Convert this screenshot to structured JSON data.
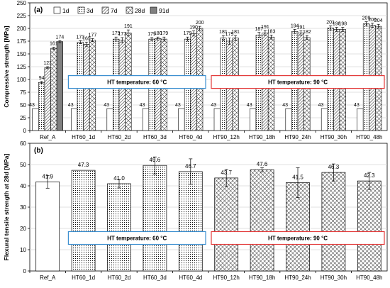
{
  "chart_data": [
    {
      "type": "bar",
      "panel_label": "(a)",
      "ylabel": "Compressive strength [MPa]",
      "ylim": [
        0,
        250
      ],
      "yticks": [
        0,
        25,
        50,
        75,
        100,
        125,
        150,
        175,
        200,
        225,
        250
      ],
      "grid": true,
      "legend_position": "top",
      "categories": [
        "Ref_A",
        "HT60_1d",
        "HT60_2d",
        "HT60_3d",
        "HT60_4d",
        "HT90_12h",
        "HT90_18h",
        "HT90_24h",
        "HT90_30h",
        "HT90_48h"
      ],
      "series": [
        {
          "name": "1d",
          "values": [
            43,
            43,
            43,
            43,
            43,
            43,
            43,
            43,
            43,
            43
          ]
        },
        {
          "name": "3d",
          "values": [
            94,
            173,
            179,
            179,
            179,
            181,
            187,
            194,
            201,
            209
          ]
        },
        {
          "name": "7d",
          "values": [
            123,
            169,
            177,
            180,
            190,
            175,
            191,
            191,
            198,
            206
          ]
        },
        {
          "name": "28d",
          "values": [
            161,
            177,
            191,
            179,
            200,
            181,
            183,
            182,
            198,
            204
          ]
        },
        {
          "name": "91d",
          "values": [
            174,
            null,
            null,
            null,
            null,
            null,
            null,
            null,
            null,
            null
          ]
        }
      ],
      "labels": [
        [
          "43",
          "94",
          "123",
          "161",
          "174"
        ],
        [
          "43",
          "173",
          "169",
          "177"
        ],
        [
          "43",
          "179",
          "177",
          "191"
        ],
        [
          "43",
          "179",
          "180",
          "179"
        ],
        [
          "43",
          "179",
          "190",
          "200"
        ],
        [
          "43",
          "181",
          "175",
          "181"
        ],
        [
          "43",
          "187",
          "191",
          "183"
        ],
        [
          "43",
          "194",
          "191",
          "182"
        ],
        [
          "43",
          "201",
          "198",
          "198"
        ],
        [
          "43",
          "209",
          "206",
          "204"
        ]
      ],
      "errors": [
        [
          0,
          2,
          2,
          2,
          2
        ],
        [
          0,
          3,
          4,
          3
        ],
        [
          0,
          4,
          5,
          6
        ],
        [
          0,
          3,
          3,
          4
        ],
        [
          0,
          4,
          5,
          4
        ],
        [
          0,
          5,
          6,
          5
        ],
        [
          0,
          5,
          5,
          4
        ],
        [
          0,
          4,
          4,
          4
        ],
        [
          0,
          4,
          4,
          4
        ],
        [
          0,
          4,
          4,
          4
        ]
      ],
      "annotations": [
        {
          "text": "HT temperature: 60 °C",
          "from": 1,
          "to": 4,
          "y": 95,
          "box_color": "#3c8fd0"
        },
        {
          "text": "HT temperature: 90 °C",
          "from": 5,
          "to": 9,
          "y": 95,
          "box_color": "#e33b3b"
        }
      ]
    },
    {
      "type": "bar",
      "panel_label": "(b)",
      "ylabel": "Flexural tensile strength at 28d [MPa]",
      "ylim": [
        0,
        60
      ],
      "yticks": [
        0,
        10,
        20,
        30,
        40,
        50,
        60
      ],
      "grid": true,
      "categories": [
        "Ref_A",
        "HT60_1d",
        "HT60_2d",
        "HT60_3d",
        "HT60_4d",
        "HT90_12h",
        "HT90_18h",
        "HT90_24h",
        "HT90_30h",
        "HT90_48h"
      ],
      "values": [
        41.9,
        47.3,
        41.0,
        49.6,
        46.7,
        43.7,
        47.6,
        41.5,
        46.3,
        42.3
      ],
      "labels": [
        "41.9",
        "47.3",
        "41.0",
        "49.6",
        "46.7",
        "43.7",
        "47.6",
        "41.5",
        "46.3",
        "42.3"
      ],
      "errors": [
        3.0,
        0,
        2.0,
        4.0,
        6.0,
        4.0,
        1.0,
        7.0,
        4.0,
        4.0
      ],
      "annotations": [
        {
          "text": "HT temperature: 60 °C",
          "from": 1,
          "to": 4,
          "y": 15.5,
          "box_color": "#3c8fd0"
        },
        {
          "text": "HT temperature: 90 °C",
          "from": 5,
          "to": 9,
          "y": 15.5,
          "box_color": "#e33b3b"
        }
      ]
    }
  ],
  "colors": {
    "panel_a_91d": "#808080",
    "box_60": "#3c8fd0",
    "box_90": "#e33b3b"
  }
}
